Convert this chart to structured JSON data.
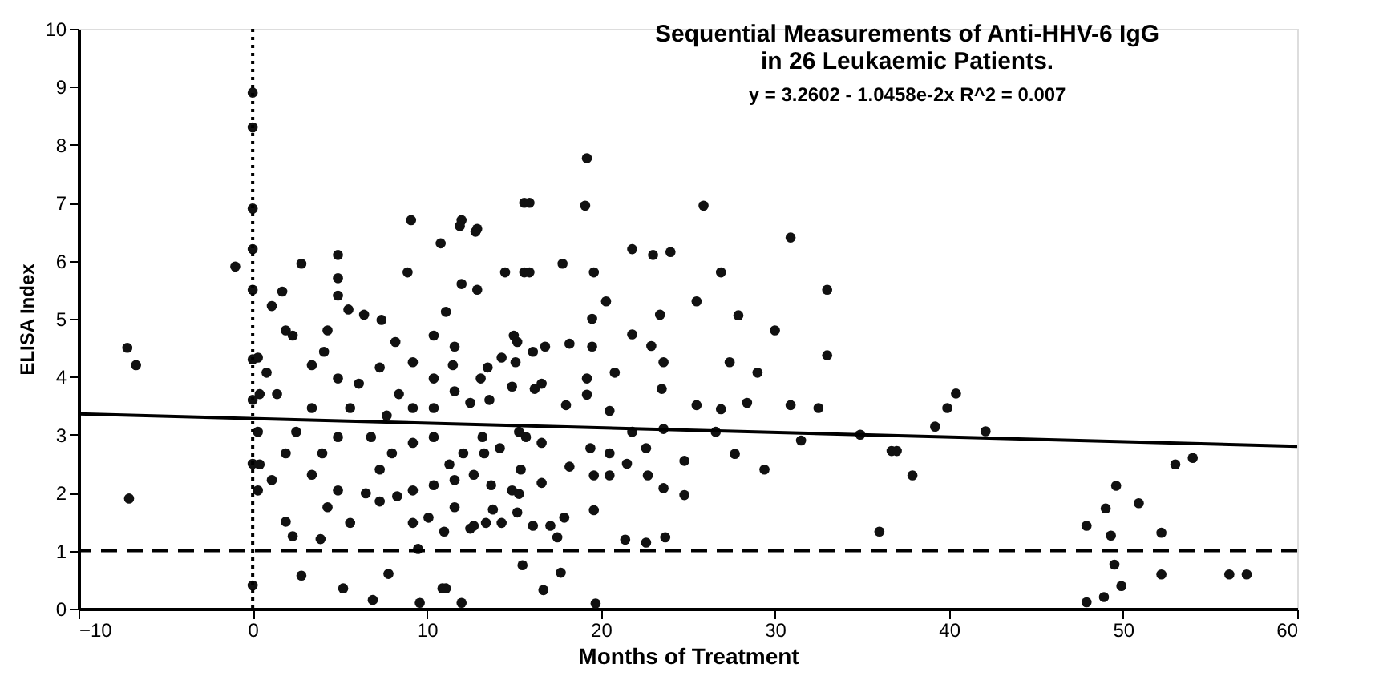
{
  "chart_data": {
    "type": "scatter",
    "title": "Sequential Measurements of Anti-HHV-6 IgG\nin 26 Leukaemic Patients.",
    "subtitle": "y = 3.2602 - 1.0458e-2x      R^2 = 0.007",
    "xlabel": "Months of Treatment",
    "ylabel": "ELISA Index",
    "xlim": [
      -10,
      60
    ],
    "ylim": [
      0,
      10
    ],
    "xticks": [
      -10,
      0,
      10,
      20,
      30,
      40,
      50,
      60
    ],
    "yticks": [
      0,
      1,
      2,
      3,
      4,
      5,
      6,
      7,
      8,
      9,
      10
    ],
    "grid": false,
    "marker": "circle",
    "ref_lines": [
      {
        "axis": "x",
        "value": 0,
        "line_style": "dotted",
        "color": "#000000"
      },
      {
        "axis": "y",
        "value": 1,
        "line_style": "dashed",
        "color": "#000000"
      }
    ],
    "series": [
      {
        "color": "#111111",
        "x": [
          -7.2,
          -6.7,
          -7.1,
          -1,
          0,
          0,
          0,
          0,
          0,
          0,
          0,
          0,
          0,
          9.1,
          12,
          12.9,
          2.8,
          4.9,
          8.9,
          4.9,
          4.9,
          15.6,
          14.5,
          15.6,
          12,
          12.9,
          10.8,
          2.8,
          5.2,
          7.8,
          6.9,
          9.6,
          11.1,
          12,
          9.5,
          2.3,
          3.9,
          1.9,
          19.2,
          15.9,
          19.1,
          25.9,
          30.9,
          11.9,
          12.8,
          21.8,
          23,
          24,
          17.8,
          15.9,
          19.6,
          26.9,
          33,
          25.5,
          20.3,
          19.5,
          23.4,
          27.9,
          30,
          33,
          27.4,
          29,
          21.8,
          22.9,
          23.6,
          23.5,
          20.8,
          19.2,
          25.5,
          26.9,
          28.4,
          30.9,
          32.5,
          34.9,
          36.7,
          31.5,
          29.4,
          27.7,
          24.8,
          24.8,
          23.6,
          22.7,
          19.6,
          20.5,
          21.5,
          21.4,
          22.6,
          23.7,
          19.6,
          17.5,
          15.5,
          17.7,
          16.7,
          19.7,
          36,
          10.9,
          40.4,
          39.9,
          39.2,
          42.1,
          37,
          37.9,
          49.6,
          49,
          50.9,
          47.9,
          49.3,
          52.2,
          49.5,
          49.9,
          52.2,
          56.1,
          57.1,
          53,
          54,
          47.9,
          48.9,
          0.3,
          0.8,
          1.1,
          1.7,
          1.9,
          2.3,
          0.4,
          1.4,
          0.3,
          0.4,
          1.1,
          0.3,
          1.9,
          2.5,
          3.4,
          4.3,
          4.1,
          3.4,
          4.9,
          6.1,
          5.6,
          4.9,
          4,
          3.4,
          4.9,
          4.3,
          5.6,
          6.5,
          7.3,
          8,
          6.8,
          7.7,
          8.4,
          7.3,
          8.2,
          7.4,
          6.4,
          5.5,
          9.2,
          10.4,
          11.6,
          11.5,
          10.4,
          9.2,
          10.4,
          11.6,
          13.1,
          12.5,
          13.6,
          14.3,
          15.2,
          14.9,
          16.2,
          16.1,
          9.2,
          10.4,
          11.3,
          12.1,
          13.3,
          14.2,
          15.4,
          15.7,
          14.9,
          13.7,
          12.7,
          11.6,
          10.4,
          9.2,
          8.3,
          7.3,
          10.1,
          11.6,
          12.5,
          13.4,
          14.3,
          15.2,
          16.1,
          11,
          9.2,
          11.1,
          15,
          16.8,
          18.2,
          19.5,
          15.1,
          13.5,
          16.6,
          18,
          15.3,
          13.2,
          16.6,
          18.2,
          16.6,
          15.3,
          13.8,
          17.9,
          12.7,
          17.1,
          19.4,
          19.2,
          20.5,
          21.8,
          23.6,
          22.6,
          20.5,
          26.6
        ],
        "values": [
          4.5,
          4.2,
          1.9,
          5.9,
          8.9,
          8.3,
          6.9,
          6.2,
          5.5,
          4.3,
          3.6,
          2.5,
          0.4,
          6.7,
          6.7,
          6.55,
          5.95,
          6.1,
          5.8,
          5.7,
          5.4,
          7,
          5.8,
          5.8,
          5.6,
          5.5,
          6.3,
          0.57,
          0.35,
          0.6,
          0.15,
          0.1,
          0.35,
          0.1,
          1.03,
          1.25,
          1.2,
          1.5,
          7.77,
          7,
          6.95,
          6.95,
          6.4,
          6.6,
          6.5,
          6.2,
          6.1,
          6.15,
          5.95,
          5.8,
          5.8,
          5.8,
          5.5,
          5.3,
          5.3,
          5,
          5.07,
          5.06,
          4.8,
          4.37,
          4.25,
          4.07,
          4.73,
          4.53,
          4.25,
          3.79,
          4.07,
          3.97,
          3.51,
          3.44,
          3.55,
          3.51,
          3.46,
          3,
          2.72,
          2.9,
          2.4,
          2.67,
          2.55,
          1.96,
          2.08,
          2.3,
          2.3,
          2.3,
          2.5,
          1.19,
          1.14,
          1.23,
          1.7,
          1.23,
          0.75,
          0.62,
          0.32,
          0.09,
          1.33,
          0.35,
          3.71,
          3.46,
          3.14,
          3.06,
          2.72,
          2.3,
          2.12,
          1.73,
          1.82,
          1.43,
          1.26,
          1.31,
          0.76,
          0.39,
          0.59,
          0.59,
          0.59,
          2.49,
          2.6,
          0.11,
          0.2,
          4.33,
          4.07,
          5.22,
          5.47,
          4.8,
          4.71,
          3.7,
          3.7,
          3.05,
          2.49,
          2.22,
          2.04,
          2.68,
          3.05,
          3.46,
          4.8,
          4.43,
          4.2,
          3.97,
          3.88,
          3.46,
          2.96,
          2.68,
          2.31,
          2.04,
          1.75,
          1.48,
          1.99,
          2.4,
          2.68,
          2.96,
          3.33,
          3.7,
          4.16,
          4.6,
          4.98,
          5.07,
          5.16,
          4.25,
          4.71,
          4.52,
          4.2,
          3.97,
          3.46,
          3.46,
          3.75,
          3.97,
          3.55,
          3.6,
          4.33,
          4.6,
          3.83,
          3.79,
          4.43,
          2.86,
          2.96,
          2.49,
          2.68,
          2.68,
          2.77,
          2.4,
          2.96,
          2.04,
          2.13,
          2.31,
          2.22,
          2.13,
          2.04,
          1.94,
          1.85,
          1.57,
          1.75,
          1.38,
          1.48,
          1.48,
          1.66,
          1.43,
          1.33,
          1.48,
          5.12,
          4.71,
          4.52,
          4.57,
          4.52,
          4.25,
          4.16,
          3.88,
          3.51,
          3.05,
          2.96,
          2.86,
          2.45,
          2.17,
          1.98,
          1.71,
          1.57,
          1.43,
          1.43,
          2.77,
          3.69,
          3.41,
          3.05,
          3.1,
          2.77,
          2.68,
          3.05
        ]
      },
      {
        "type": "line",
        "color": "#000000",
        "line_style": "solid",
        "marker": "none",
        "x": [
          -10,
          60
        ],
        "values": [
          3.36,
          2.8
        ]
      }
    ]
  }
}
